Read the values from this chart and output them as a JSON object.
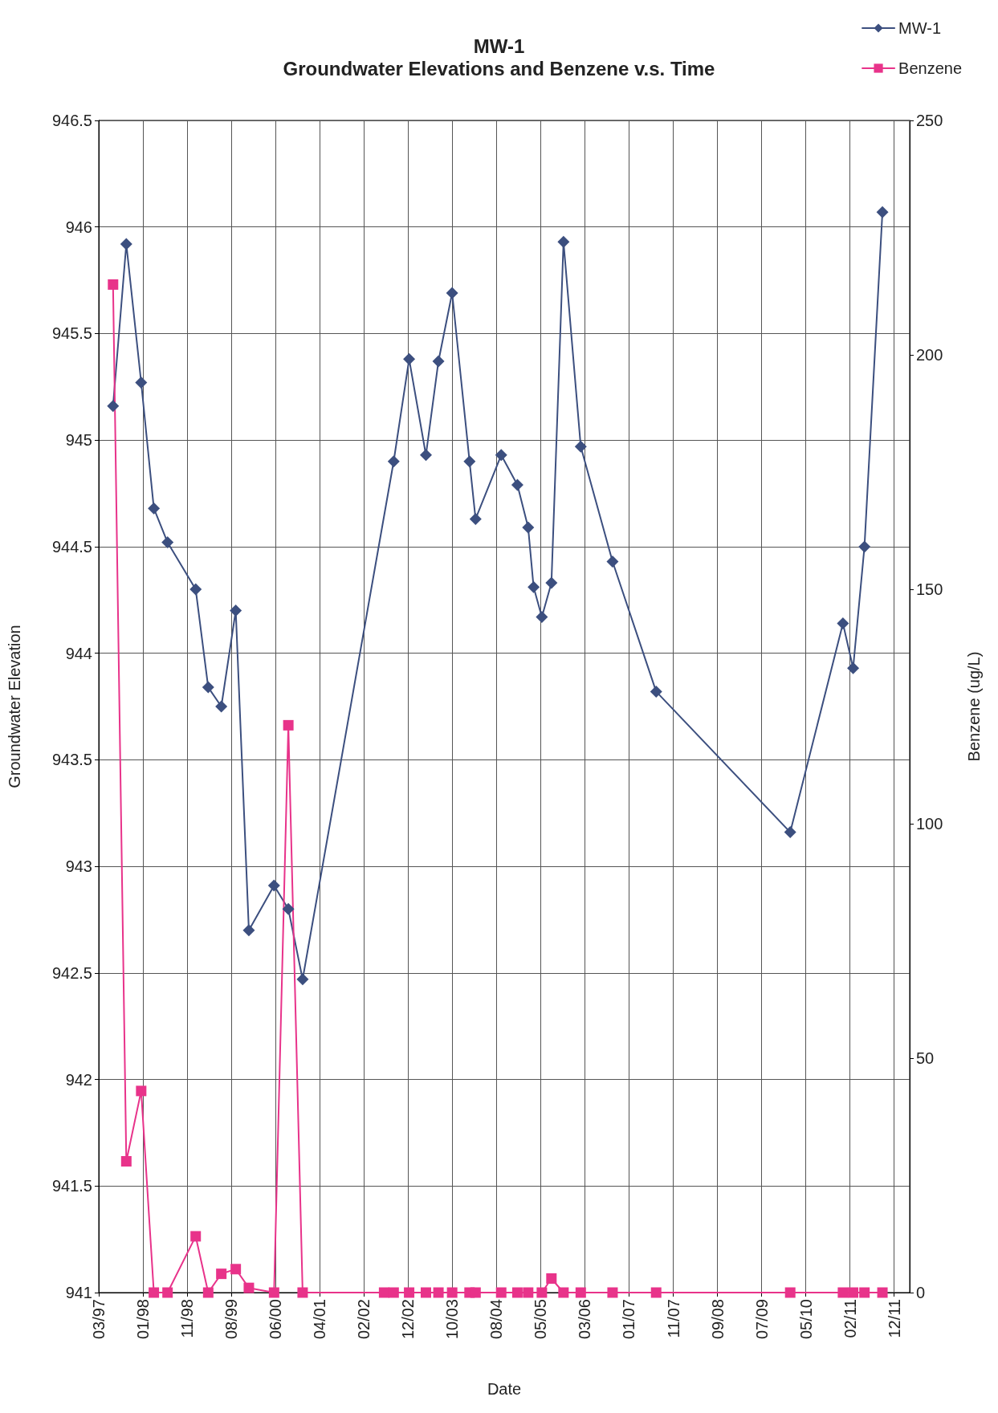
{
  "chart_data": {
    "type": "line",
    "title": "MW-1",
    "subtitle": "Groundwater Elevations and Benzene v.s. Time",
    "xlabel": "Date",
    "ylabel": "Groundwater Elevation",
    "y2label": "Benzene (ug/L)",
    "series": [
      {
        "name": "MW-1",
        "color": "#3c4f7f",
        "marker": "diamond",
        "x": [
          "1997-06-17",
          "1997-09-15",
          "1997-12-25",
          "1998-03-21",
          "1998-06-22",
          "1998-12-30",
          "1999-03-25",
          "1999-06-22",
          "1999-09-28",
          "1999-12-26",
          "2000-06-14",
          "2000-09-19",
          "2000-12-25",
          "2002-09-04",
          "2002-12-18",
          "2003-04-11",
          "2003-07-05",
          "2003-10-06",
          "2004-02-01",
          "2004-03-13",
          "2004-09-03",
          "2004-12-22",
          "2005-03-05",
          "2005-04-11",
          "2005-06-06",
          "2005-08-10",
          "2005-10-31",
          "2006-02-25",
          "2006-09-29",
          "2007-07-22",
          "2010-01-17",
          "2011-01-10",
          "2011-03-20",
          "2011-06-05",
          "2011-10-05"
        ],
        "values": [
          945.16,
          945.92,
          945.27,
          944.68,
          944.52,
          944.3,
          943.84,
          943.75,
          944.2,
          942.7,
          942.91,
          942.8,
          942.47,
          944.9,
          945.38,
          944.93,
          945.37,
          945.69,
          944.9,
          944.63,
          944.93,
          944.79,
          944.59,
          944.31,
          944.17,
          944.33,
          945.93,
          944.97,
          944.43,
          943.82,
          943.16,
          944.14,
          943.93,
          944.5,
          946.07
        ]
      },
      {
        "name": "Benzene",
        "color": "#e8338a",
        "marker": "square",
        "axis": "y2",
        "x": [
          "1997-06-17",
          "1997-09-15",
          "1997-12-25",
          "1998-03-21",
          "1998-06-22",
          "1998-12-30",
          "1999-03-25",
          "1999-06-22",
          "1999-09-28",
          "1999-12-26",
          "2000-06-14",
          "2000-09-19",
          "2000-12-25",
          "2002-07-01",
          "2002-09-04",
          "2002-12-18",
          "2003-04-11",
          "2003-07-05",
          "2003-10-06",
          "2004-02-01",
          "2004-03-13",
          "2004-09-03",
          "2004-12-22",
          "2005-03-05",
          "2005-06-06",
          "2005-08-10",
          "2005-10-31",
          "2006-02-25",
          "2006-09-29",
          "2007-07-22",
          "2010-01-17",
          "2011-01-10",
          "2011-03-20",
          "2011-06-05",
          "2011-10-05"
        ],
        "values": [
          215,
          28,
          43,
          0,
          0,
          12,
          0,
          4,
          5,
          1,
          0,
          121,
          0,
          0,
          0,
          0,
          0,
          0,
          0,
          0,
          0,
          0,
          0,
          0,
          0,
          3,
          0,
          0,
          0,
          0,
          0,
          0,
          0,
          0,
          0
        ]
      }
    ],
    "xlim": [
      "1997-03-12",
      "2012-04-07"
    ],
    "xticks": [
      {
        "value": "1997-03-12",
        "label": "03/97"
      },
      {
        "value": "1998-01-06",
        "label": "01/98"
      },
      {
        "value": "1998-11-02",
        "label": "11/98"
      },
      {
        "value": "1999-08-29",
        "label": "08/99"
      },
      {
        "value": "2000-06-24",
        "label": "06/00"
      },
      {
        "value": "2001-04-20",
        "label": "04/01"
      },
      {
        "value": "2002-02-14",
        "label": "02/02"
      },
      {
        "value": "2002-12-11",
        "label": "12/02"
      },
      {
        "value": "2003-10-07",
        "label": "10/03"
      },
      {
        "value": "2004-08-02",
        "label": "08/04"
      },
      {
        "value": "2005-05-29",
        "label": "05/05"
      },
      {
        "value": "2006-03-25",
        "label": "03/06"
      },
      {
        "value": "2007-01-19",
        "label": "01/07"
      },
      {
        "value": "2007-11-15",
        "label": "11/07"
      },
      {
        "value": "2008-09-10",
        "label": "09/08"
      },
      {
        "value": "2009-07-07",
        "label": "07/09"
      },
      {
        "value": "2010-05-03",
        "label": "05/10"
      },
      {
        "value": "2011-02-27",
        "label": "02/11"
      },
      {
        "value": "2011-12-24",
        "label": "12/11"
      }
    ],
    "ylim": [
      941,
      946.5
    ],
    "yticks": [
      941,
      941.5,
      942,
      942.5,
      943,
      943.5,
      944,
      944.5,
      945,
      945.5,
      946,
      946.5
    ],
    "y2lim": [
      0,
      250
    ],
    "y2ticks": [
      0,
      50,
      100,
      150,
      200,
      250
    ],
    "grid": true,
    "legend": "top right",
    "line_style": "solid"
  }
}
